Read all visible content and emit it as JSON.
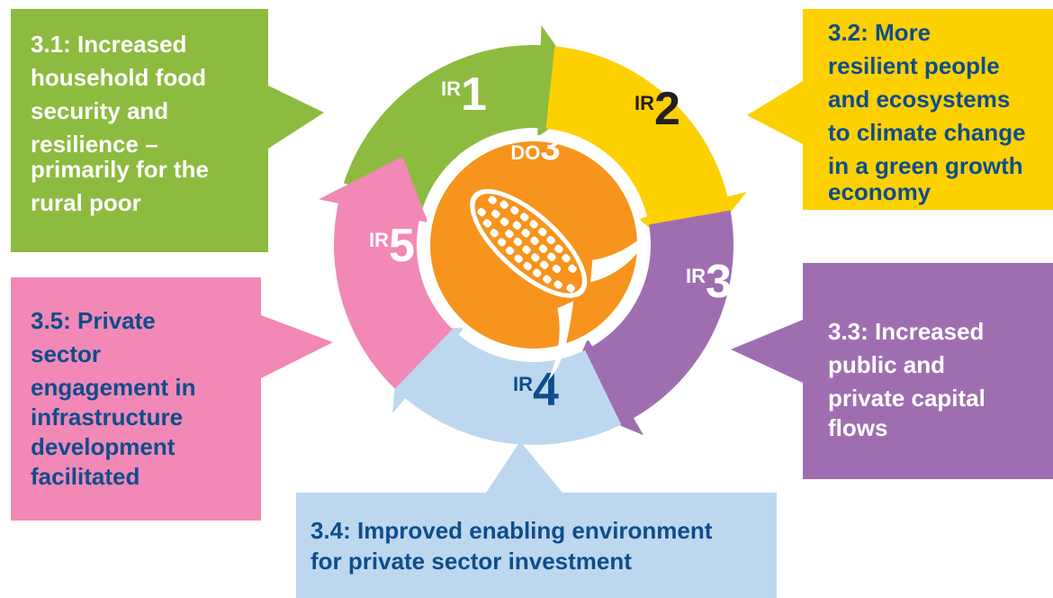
{
  "center": {
    "label_prefix": "DO",
    "label_number": "3",
    "icon": "corn-icon"
  },
  "segments": [
    {
      "id": "ir1",
      "prefix": "IR",
      "number": "1",
      "color": "#8dbb3f",
      "label_color": "#ffffff"
    },
    {
      "id": "ir2",
      "prefix": "IR",
      "number": "2",
      "color": "#fdd000",
      "label_color": "#231f20"
    },
    {
      "id": "ir3",
      "prefix": "IR",
      "number": "3",
      "color": "#9f6eb1",
      "label_color": "#ffffff"
    },
    {
      "id": "ir4",
      "prefix": "IR",
      "number": "4",
      "color": "#bdd7ee",
      "label_color": "#0e4d8c"
    },
    {
      "id": "ir5",
      "prefix": "IR",
      "number": "5",
      "color": "#f188b6",
      "label_color": "#ffffff"
    }
  ],
  "results": [
    {
      "id": "r31",
      "lines": [
        "3.1: Increased",
        "household food",
        "security and",
        "resilience –",
        "primarily for the",
        "rural poor"
      ]
    },
    {
      "id": "r32",
      "lines": [
        "3.2: More",
        "resilient people",
        "and ecosystems",
        "to climate change",
        "in a green growth",
        "economy"
      ]
    },
    {
      "id": "r33",
      "lines": [
        "3.3: Increased",
        "public and",
        "private capital",
        "flows"
      ]
    },
    {
      "id": "r34",
      "lines": [
        "3.4: Improved enabling environment",
        "for private sector investment"
      ]
    },
    {
      "id": "r35",
      "lines": [
        "3.5: Private",
        "sector",
        "engagement in",
        "infrastructure",
        "development",
        "facilitated"
      ]
    }
  ],
  "colors": {
    "center": "#f7941d",
    "center_border": "#ffffff"
  }
}
